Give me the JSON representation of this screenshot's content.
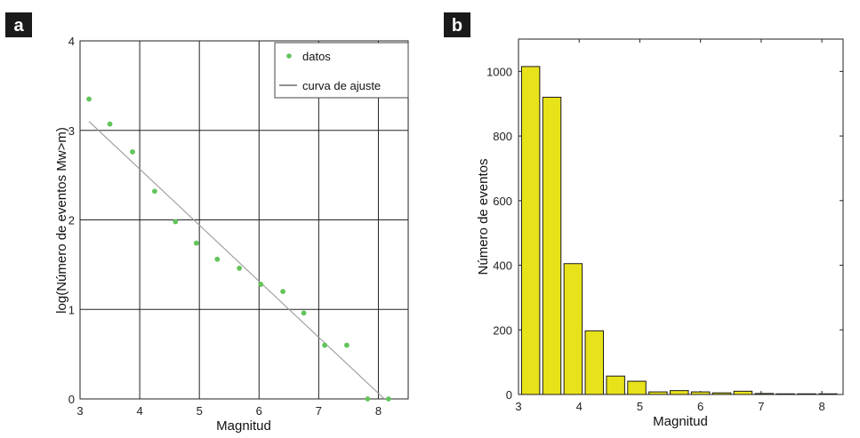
{
  "panels": {
    "a": {
      "tag": "a"
    },
    "b": {
      "tag": "b"
    }
  },
  "colors": {
    "scatter": "#62c45a",
    "fit_line": "#9a9a9a",
    "grid": "#222222",
    "bar_fill": "#e8e21a",
    "bar_edge": "#1a1a1a",
    "tag_bg": "#1a1a1a"
  },
  "chart_data": [
    {
      "type": "scatter",
      "panel": "a",
      "xlabel": "Magnitud",
      "ylabel": "log(Número de eventos Mw>m)",
      "xlim": [
        3,
        8.5
      ],
      "ylim": [
        0,
        4
      ],
      "xticks": [
        3,
        4,
        5,
        6,
        7,
        8
      ],
      "yticks": [
        0,
        1,
        2,
        3,
        4
      ],
      "grid": true,
      "legend_position": "top-right",
      "legend": [
        {
          "label": "datos",
          "kind": "marker"
        },
        {
          "label": "curva de ajuste",
          "kind": "line"
        }
      ],
      "series": [
        {
          "name": "datos",
          "kind": "scatter",
          "x": [
            3.15,
            3.5,
            3.88,
            4.25,
            4.6,
            4.95,
            5.3,
            5.67,
            6.03,
            6.4,
            6.75,
            7.1,
            7.47,
            7.82,
            8.17
          ],
          "y": [
            3.35,
            3.07,
            2.76,
            2.32,
            1.98,
            1.74,
            1.56,
            1.46,
            1.28,
            1.2,
            0.96,
            0.6,
            0.6,
            0.0,
            0.0
          ]
        },
        {
          "name": "curva de ajuste",
          "kind": "line",
          "x": [
            3.15,
            8.1
          ],
          "y": [
            3.1,
            0.0
          ]
        }
      ]
    },
    {
      "type": "bar",
      "panel": "b",
      "xlabel": "Magnitud",
      "ylabel": "Número de eventos",
      "xlim": [
        3,
        8.35
      ],
      "ylim": [
        0,
        1100
      ],
      "xticks": [
        3,
        4,
        5,
        6,
        7,
        8
      ],
      "yticks": [
        0,
        200,
        400,
        600,
        800,
        1000
      ],
      "grid": false,
      "bar_width": 0.3,
      "bars": [
        {
          "x": 3.2,
          "value": 1015
        },
        {
          "x": 3.55,
          "value": 920
        },
        {
          "x": 3.9,
          "value": 405
        },
        {
          "x": 4.25,
          "value": 197
        },
        {
          "x": 4.6,
          "value": 57
        },
        {
          "x": 4.95,
          "value": 41
        },
        {
          "x": 5.3,
          "value": 8
        },
        {
          "x": 5.65,
          "value": 12
        },
        {
          "x": 6.0,
          "value": 8
        },
        {
          "x": 6.35,
          "value": 5
        },
        {
          "x": 6.7,
          "value": 10
        },
        {
          "x": 7.05,
          "value": 3
        },
        {
          "x": 7.4,
          "value": 2
        },
        {
          "x": 7.75,
          "value": 2
        },
        {
          "x": 8.1,
          "value": 2
        }
      ]
    }
  ]
}
